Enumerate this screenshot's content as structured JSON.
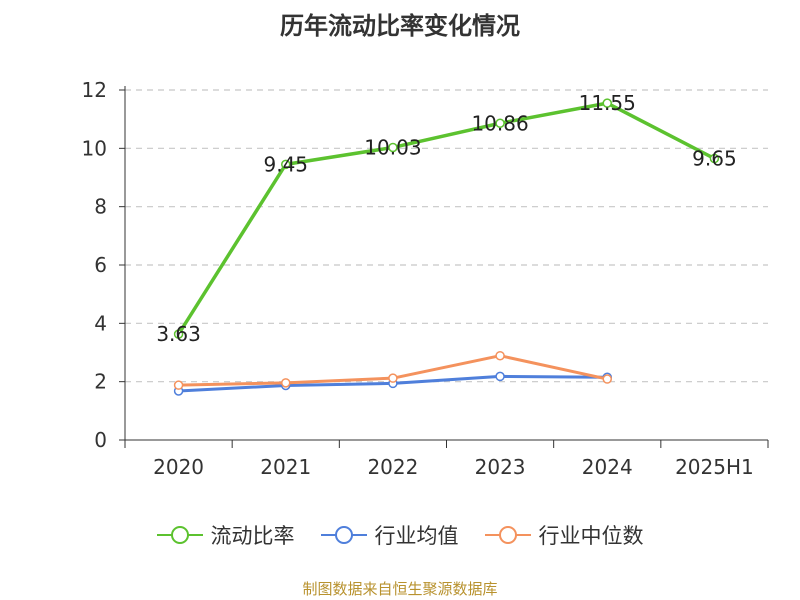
{
  "chart_data": {
    "type": "line",
    "title": "历年流动比率变化情况",
    "categories": [
      "2020",
      "2021",
      "2022",
      "2023",
      "2024",
      "2025H1"
    ],
    "ylim": [
      0,
      12
    ],
    "yticks": [
      "0",
      "2",
      "4",
      "6",
      "8",
      "10",
      "12"
    ],
    "grid": true,
    "legend_position": "bottom",
    "series": [
      {
        "name": "流动比率",
        "color": "#5cc22f",
        "values": [
          3.63,
          9.45,
          10.03,
          10.86,
          11.55,
          9.65
        ],
        "labels": [
          "3.63",
          "9.45",
          "10.03",
          "10.86",
          "11.55",
          "9.65"
        ]
      },
      {
        "name": "行业均值",
        "color": "#4f7fdb",
        "values": [
          1.68,
          1.87,
          1.94,
          2.18,
          2.15,
          null
        ]
      },
      {
        "name": "行业中位数",
        "color": "#f4925d",
        "values": [
          1.88,
          1.96,
          2.12,
          2.89,
          2.09,
          null
        ]
      }
    ]
  },
  "footer": "制图数据来自恒生聚源数据库"
}
